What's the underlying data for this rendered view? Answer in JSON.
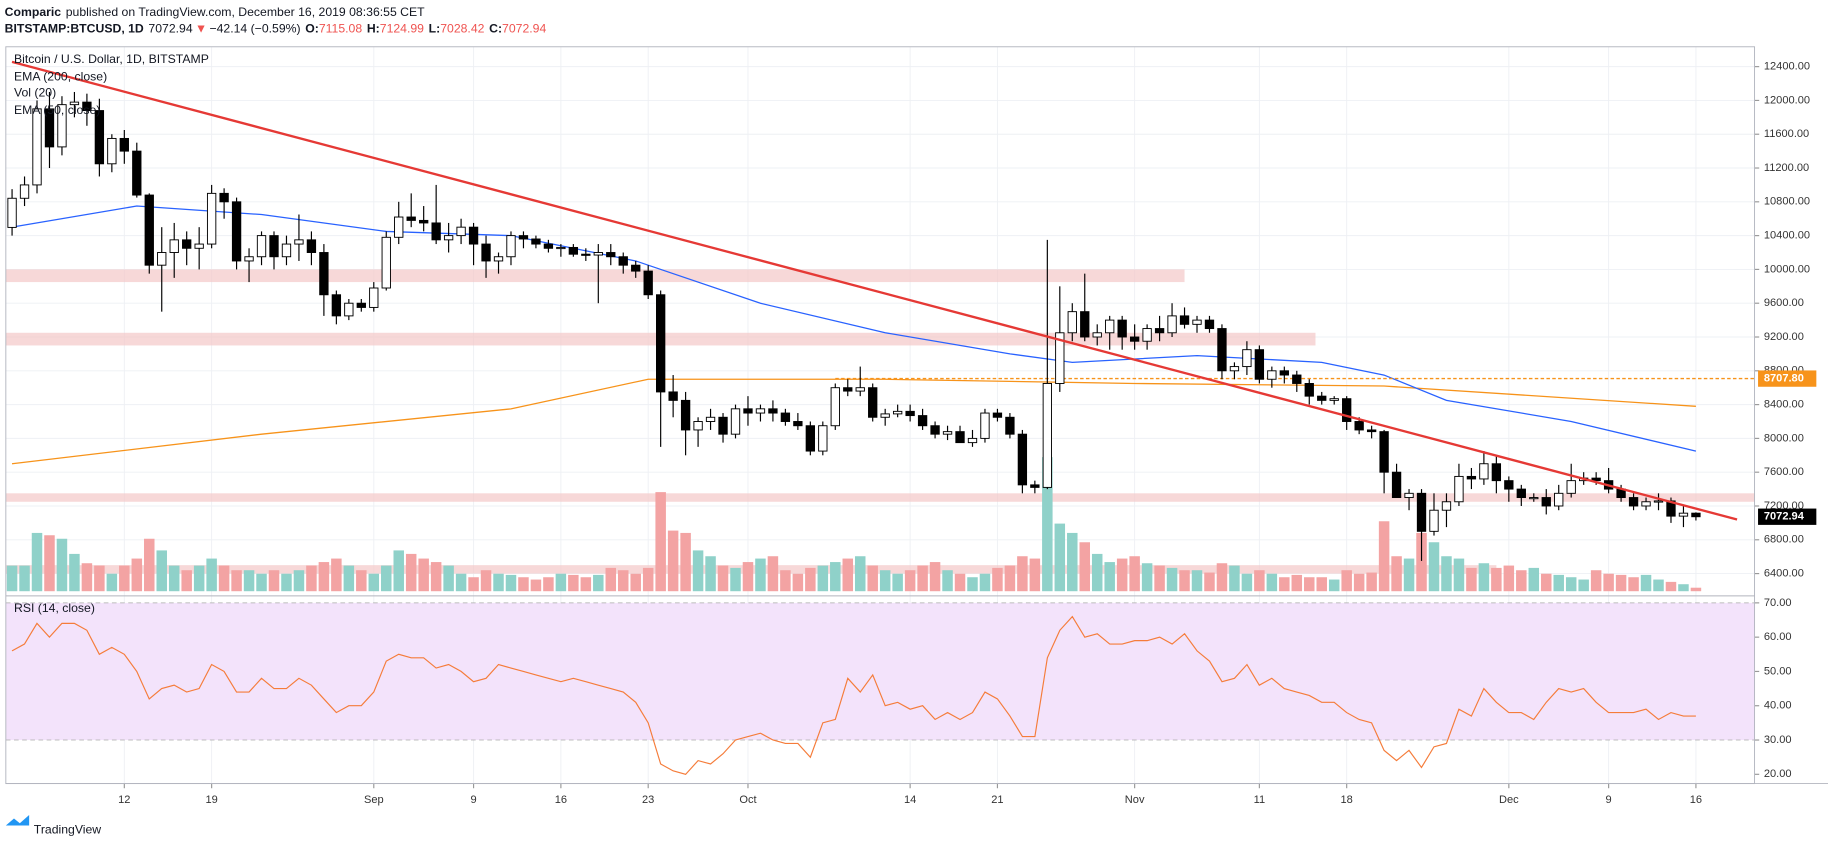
{
  "header": {
    "author": "Comparic",
    "published": "published on TradingView.com, December 16, 2019 08:36:55 CET",
    "symbol": "BITSTAMP:BTCUSD, 1D",
    "arrow": "▼",
    "change": "−42.14 (−0.59%)",
    "ohlc_labels": [
      "O:",
      "H:",
      "L:",
      "C:"
    ]
  },
  "footer": "TradingView",
  "chart_data": {
    "type": "candlestick",
    "title": "Bitcoin / U.S. Dollar, 1D, BITSTAMP",
    "xlim": [
      -0.5,
      139.7
    ],
    "xticks": [
      {
        "value": 9,
        "label": "12"
      },
      {
        "value": 16,
        "label": "19"
      },
      {
        "value": 29,
        "label": "Sep"
      },
      {
        "value": 37,
        "label": "9"
      },
      {
        "value": 44,
        "label": "16"
      },
      {
        "value": 51,
        "label": "23"
      },
      {
        "value": 59,
        "label": "Oct"
      },
      {
        "value": 72,
        "label": "14"
      },
      {
        "value": 79,
        "label": "21"
      },
      {
        "value": 90,
        "label": "Nov"
      },
      {
        "value": 100,
        "label": "11"
      },
      {
        "value": 107,
        "label": "18"
      },
      {
        "value": 120,
        "label": "Dec"
      },
      {
        "value": 128,
        "label": "9"
      },
      {
        "value": 135,
        "label": "16"
      }
    ],
    "ylim": [
      6150,
      12635
    ],
    "yticks": [
      {
        "value": 6400,
        "label": "6400.00"
      },
      {
        "value": 6800,
        "label": "6800.00"
      },
      {
        "value": 7200,
        "label": "7200.00"
      },
      {
        "value": 7600,
        "label": "7600.00"
      },
      {
        "value": 8000,
        "label": "8000.00"
      },
      {
        "value": 8400,
        "label": "8400.00"
      },
      {
        "value": 8800,
        "label": "8800.00"
      },
      {
        "value": 9200,
        "label": "9200.00"
      },
      {
        "value": 9600,
        "label": "9600.00"
      },
      {
        "value": 10000,
        "label": "10000.00"
      },
      {
        "value": 10400,
        "label": "10400.00"
      },
      {
        "value": 10800,
        "label": "10800.00"
      },
      {
        "value": 11200,
        "label": "11200.00"
      },
      {
        "value": 11600,
        "label": "11600.00"
      },
      {
        "value": 12000,
        "label": "12000.00"
      },
      {
        "value": 12400,
        "label": "12400.00"
      }
    ],
    "grid": true,
    "up_color": "#ffffff",
    "down_color": "#000000",
    "candles": [
      [
        10497,
        10950,
        10400,
        10842
      ],
      [
        10842,
        11100,
        10750,
        11000
      ],
      [
        11000,
        12000,
        10900,
        11900
      ],
      [
        11900,
        12100,
        11200,
        11450
      ],
      [
        11450,
        12050,
        11350,
        11950
      ],
      [
        11950,
        12100,
        11800,
        11980
      ],
      [
        11980,
        12080,
        11700,
        11880
      ],
      [
        11880,
        12020,
        11100,
        11250
      ],
      [
        11250,
        11600,
        11150,
        11550
      ],
      [
        11550,
        11650,
        11250,
        11400
      ],
      [
        11400,
        11500,
        10850,
        10880
      ],
      [
        10880,
        10900,
        9950,
        10050
      ],
      [
        10050,
        10500,
        9500,
        10200
      ],
      [
        10200,
        10550,
        9900,
        10350
      ],
      [
        10350,
        10450,
        10050,
        10250
      ],
      [
        10250,
        10500,
        10000,
        10300
      ],
      [
        10300,
        11000,
        10250,
        10900
      ],
      [
        10900,
        10960,
        10600,
        10800
      ],
      [
        10800,
        10850,
        10000,
        10100
      ],
      [
        10100,
        10250,
        9850,
        10150
      ],
      [
        10150,
        10450,
        10050,
        10400
      ],
      [
        10400,
        10450,
        10000,
        10150
      ],
      [
        10150,
        10400,
        10050,
        10300
      ],
      [
        10300,
        10650,
        10100,
        10350
      ],
      [
        10350,
        10450,
        10050,
        10200
      ],
      [
        10200,
        10300,
        9450,
        9700
      ],
      [
        9700,
        9750,
        9350,
        9450
      ],
      [
        9450,
        9650,
        9400,
        9600
      ],
      [
        9600,
        9650,
        9500,
        9550
      ],
      [
        9550,
        9850,
        9500,
        9780
      ],
      [
        9780,
        10450,
        9750,
        10380
      ],
      [
        10380,
        10800,
        10300,
        10620
      ],
      [
        10620,
        10900,
        10500,
        10580
      ],
      [
        10580,
        10750,
        10450,
        10550
      ],
      [
        10550,
        11000,
        10300,
        10350
      ],
      [
        10350,
        10550,
        10200,
        10400
      ],
      [
        10400,
        10600,
        10300,
        10500
      ],
      [
        10500,
        10550,
        10050,
        10300
      ],
      [
        10300,
        10400,
        9900,
        10100
      ],
      [
        10100,
        10200,
        9950,
        10150
      ],
      [
        10150,
        10450,
        10050,
        10400
      ],
      [
        10400,
        10450,
        10250,
        10360
      ],
      [
        10360,
        10400,
        10250,
        10300
      ],
      [
        10300,
        10350,
        10200,
        10250
      ],
      [
        10250,
        10300,
        10150,
        10260
      ],
      [
        10260,
        10300,
        10150,
        10180
      ],
      [
        10180,
        10250,
        10100,
        10170
      ],
      [
        10170,
        10300,
        9600,
        10200
      ],
      [
        10200,
        10300,
        10050,
        10150
      ],
      [
        10150,
        10200,
        9950,
        10050
      ],
      [
        10050,
        10100,
        9900,
        9980
      ],
      [
        9980,
        10050,
        9650,
        9700
      ],
      [
        9700,
        9750,
        7900,
        8550
      ],
      [
        8550,
        8750,
        8250,
        8450
      ],
      [
        8450,
        8550,
        7800,
        8100
      ],
      [
        8100,
        8250,
        7900,
        8200
      ],
      [
        8200,
        8350,
        8100,
        8250
      ],
      [
        8250,
        8300,
        7950,
        8050
      ],
      [
        8050,
        8400,
        8000,
        8350
      ],
      [
        8350,
        8500,
        8150,
        8300
      ],
      [
        8300,
        8400,
        8200,
        8350
      ],
      [
        8350,
        8450,
        8200,
        8300
      ],
      [
        8300,
        8350,
        8150,
        8200
      ],
      [
        8200,
        8300,
        8100,
        8150
      ],
      [
        8150,
        8200,
        7800,
        7850
      ],
      [
        7850,
        8200,
        7800,
        8150
      ],
      [
        8150,
        8650,
        8100,
        8600
      ],
      [
        8600,
        8700,
        8500,
        8560
      ],
      [
        8560,
        8850,
        8500,
        8600
      ],
      [
        8600,
        8650,
        8200,
        8250
      ],
      [
        8250,
        8350,
        8150,
        8290
      ],
      [
        8290,
        8400,
        8250,
        8320
      ],
      [
        8320,
        8400,
        8200,
        8270
      ],
      [
        8270,
        8350,
        8100,
        8150
      ],
      [
        8150,
        8200,
        8000,
        8050
      ],
      [
        8050,
        8150,
        7980,
        8080
      ],
      [
        8080,
        8150,
        7950,
        7950
      ],
      [
        7950,
        8100,
        7900,
        8000
      ],
      [
        8000,
        8350,
        7950,
        8300
      ],
      [
        8300,
        8350,
        8200,
        8250
      ],
      [
        8250,
        8300,
        8000,
        8050
      ],
      [
        8050,
        8100,
        7350,
        7450
      ],
      [
        7450,
        7500,
        7350,
        7420
      ],
      [
        7420,
        10350,
        7400,
        8650
      ],
      [
        8650,
        9800,
        8550,
        9250
      ],
      [
        9250,
        9600,
        9150,
        9500
      ],
      [
        9500,
        9950,
        9150,
        9200
      ],
      [
        9200,
        9350,
        9100,
        9250
      ],
      [
        9250,
        9450,
        9050,
        9400
      ],
      [
        9400,
        9450,
        9050,
        9200
      ],
      [
        9200,
        9350,
        9050,
        9150
      ],
      [
        9150,
        9350,
        9050,
        9300
      ],
      [
        9300,
        9450,
        9150,
        9250
      ],
      [
        9250,
        9600,
        9200,
        9450
      ],
      [
        9450,
        9550,
        9300,
        9350
      ],
      [
        9350,
        9450,
        9250,
        9400
      ],
      [
        9400,
        9450,
        9250,
        9300
      ],
      [
        9300,
        9350,
        8700,
        8800
      ],
      [
        8800,
        8900,
        8700,
        8850
      ],
      [
        8850,
        9150,
        8750,
        9050
      ],
      [
        9050,
        9100,
        8650,
        8700
      ],
      [
        8700,
        8850,
        8600,
        8800
      ],
      [
        8800,
        8850,
        8650,
        8750
      ],
      [
        8750,
        8800,
        8550,
        8650
      ],
      [
        8650,
        8700,
        8400,
        8500
      ],
      [
        8500,
        8550,
        8400,
        8450
      ],
      [
        8450,
        8500,
        8400,
        8470
      ],
      [
        8470,
        8500,
        8100,
        8200
      ],
      [
        8200,
        8250,
        8050,
        8100
      ],
      [
        8100,
        8150,
        8000,
        8080
      ],
      [
        8080,
        8100,
        7350,
        7600
      ],
      [
        7600,
        7700,
        7300,
        7300
      ],
      [
        7300,
        7400,
        7150,
        7350
      ],
      [
        7350,
        7400,
        6550,
        6900
      ],
      [
        6900,
        7350,
        6850,
        7150
      ],
      [
        7150,
        7350,
        6950,
        7250
      ],
      [
        7250,
        7700,
        7200,
        7550
      ],
      [
        7550,
        7650,
        7400,
        7520
      ],
      [
        7520,
        7850,
        7450,
        7700
      ],
      [
        7700,
        7800,
        7350,
        7500
      ],
      [
        7500,
        7550,
        7250,
        7400
      ],
      [
        7400,
        7450,
        7200,
        7300
      ],
      [
        7300,
        7350,
        7250,
        7300
      ],
      [
        7300,
        7400,
        7100,
        7200
      ],
      [
        7200,
        7450,
        7150,
        7350
      ],
      [
        7350,
        7700,
        7300,
        7500
      ],
      [
        7500,
        7600,
        7450,
        7530
      ],
      [
        7530,
        7600,
        7450,
        7500
      ],
      [
        7500,
        7650,
        7350,
        7400
      ],
      [
        7400,
        7450,
        7250,
        7300
      ],
      [
        7300,
        7350,
        7150,
        7200
      ],
      [
        7200,
        7300,
        7150,
        7250
      ],
      [
        7250,
        7350,
        7150,
        7260
      ],
      [
        7260,
        7300,
        7000,
        7080
      ],
      [
        7080,
        7200,
        6950,
        7115
      ],
      [
        7115.08,
        7124.99,
        7028.42,
        7072.94
      ]
    ],
    "ema_200": {
      "name": "EMA (200, close)",
      "color": "#f7931a",
      "x": [
        0,
        20,
        40,
        51,
        70,
        90,
        110,
        135
      ],
      "values": [
        7700,
        8050,
        8350,
        8700,
        8700,
        8650,
        8620,
        8380
      ]
    },
    "ema_50": {
      "name": "EMA (50, close)",
      "color": "#2962ff",
      "x": [
        0,
        10,
        20,
        30,
        40,
        50,
        60,
        70,
        80,
        85,
        95,
        105,
        110,
        115,
        125,
        135
      ],
      "values": [
        10500,
        10750,
        10650,
        10450,
        10400,
        10100,
        9600,
        9250,
        9000,
        8900,
        8980,
        8900,
        8750,
        8450,
        8200,
        7850
      ]
    },
    "volume": {
      "name": "Vol (20)",
      "up_color": "#8fd1c9",
      "down_color": "#f3a3a3",
      "values": [
        22,
        22,
        50,
        48,
        45,
        32,
        24,
        22,
        15,
        22,
        28,
        45,
        35,
        22,
        18,
        22,
        28,
        22,
        18,
        18,
        15,
        18,
        15,
        18,
        22,
        25,
        28,
        22,
        18,
        15,
        22,
        35,
        32,
        28,
        25,
        22,
        15,
        12,
        18,
        15,
        14,
        12,
        10,
        12,
        15,
        14,
        12,
        14,
        20,
        18,
        15,
        20,
        85,
        52,
        50,
        35,
        30,
        22,
        20,
        25,
        28,
        30,
        18,
        15,
        20,
        22,
        25,
        28,
        30,
        22,
        18,
        15,
        18,
        22,
        25,
        18,
        15,
        12,
        15,
        20,
        22,
        30,
        28,
        115,
        58,
        50,
        42,
        32,
        25,
        28,
        30,
        24,
        22,
        20,
        18,
        18,
        16,
        24,
        22,
        15,
        18,
        15,
        12,
        14,
        12,
        12,
        10,
        18,
        15,
        16,
        60,
        30,
        28,
        50,
        42,
        30,
        28,
        20,
        24,
        20,
        22,
        18,
        20,
        15,
        14,
        12,
        10,
        18,
        15,
        14,
        12,
        14,
        10,
        8,
        6,
        3
      ]
    },
    "trendline": {
      "color": "#e53935",
      "x": [
        0,
        138.3
      ],
      "values": [
        12455,
        7040
      ]
    },
    "zones": [
      {
        "from": 9850,
        "to": 10000,
        "start": -0.5,
        "end": 94
      },
      {
        "from": 9100,
        "to": 9250,
        "start": -0.5,
        "end": 104.5
      },
      {
        "from": 7250,
        "to": 7350,
        "start": -0.5,
        "end": 139.7
      },
      {
        "from": 6400,
        "to": 6500,
        "start": -0.5,
        "end": 119
      }
    ],
    "zone_color": "#f4c7c7",
    "level": {
      "value": 8707.8,
      "label": "8707.80",
      "start": 66,
      "color": "#f7931a"
    },
    "rsi": {
      "name": "RSI (14, close)",
      "color": "#f57c3a",
      "band": [
        30,
        70
      ],
      "band_color": "#f3e3fb",
      "ylim": [
        17.3,
        71.7
      ],
      "yticks": [
        {
          "value": 20,
          "label": "20.00"
        },
        {
          "value": 30,
          "label": "30.00"
        },
        {
          "value": 40,
          "label": "40.00"
        },
        {
          "value": 50,
          "label": "50.00"
        },
        {
          "value": 60,
          "label": "60.00"
        },
        {
          "value": 70,
          "label": "70.00"
        }
      ],
      "values": [
        56,
        58,
        64,
        60,
        64,
        64,
        62,
        55,
        57,
        55,
        50,
        42,
        45,
        46,
        44,
        45,
        52,
        50,
        44,
        44,
        48,
        45,
        45,
        48,
        46,
        42,
        38,
        40,
        40,
        44,
        53,
        55,
        54,
        54,
        51,
        52,
        50,
        47,
        48,
        52,
        51,
        50,
        49,
        48,
        47,
        48,
        47,
        46,
        45,
        44,
        41,
        35,
        23,
        21,
        20,
        24,
        23,
        26,
        30,
        31,
        32,
        30,
        29,
        29,
        25,
        35,
        36,
        48,
        44,
        49,
        40,
        41,
        39,
        40,
        36,
        38,
        36,
        38,
        44,
        42,
        37,
        31,
        31,
        54,
        62,
        66,
        60,
        61,
        58,
        58,
        59,
        59,
        60,
        58,
        61,
        56,
        53,
        47,
        48,
        52,
        46,
        48,
        45,
        44,
        43,
        41,
        41,
        38,
        36,
        35,
        27,
        24,
        27,
        22,
        28,
        29,
        39,
        37,
        45,
        41,
        38,
        38,
        36,
        41,
        45,
        44,
        45,
        41,
        38,
        38,
        38,
        39,
        36,
        38,
        37,
        37
      ]
    }
  }
}
